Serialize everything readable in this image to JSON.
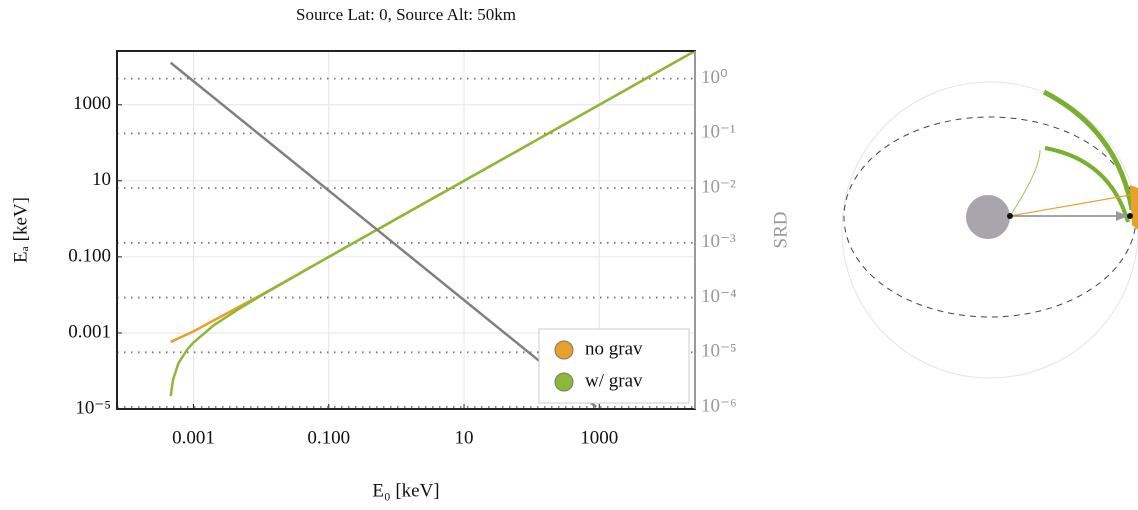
{
  "chart_data": {
    "type": "line",
    "title": "Source Lat: 0, Source Alt: 50km",
    "xlabel": "E₀ [keV]",
    "ylabel": "Eₐ [keV]",
    "y2label": "SRD",
    "xscale": "log",
    "yscale": "log",
    "y2scale": "log",
    "grid": true,
    "legend": "lower right",
    "xlim": [
      7.4e-05,
      26000
    ],
    "ylim": [
      1e-05,
      26000
    ],
    "y2lim": [
      9.2e-07,
      3.2
    ],
    "xticks": [
      0.001,
      {
        "value": 0.1,
        "label": "0.100"
      },
      10,
      1000
    ],
    "yticks": [
      {
        "value": 1e-05,
        "label": "10⁻⁵"
      },
      0.001,
      {
        "value": 0.1,
        "label": "0.100"
      },
      10,
      1000
    ],
    "y2ticks": [
      {
        "value": 1e-06,
        "label": "10⁻⁶"
      },
      {
        "value": 1e-05,
        "label": "10⁻⁵"
      },
      {
        "value": 0.0001,
        "label": "10⁻⁴"
      },
      {
        "value": 0.001,
        "label": "10⁻³"
      },
      {
        "value": 0.01,
        "label": "10⁻²"
      },
      {
        "value": 0.1,
        "label": "10⁻¹"
      },
      {
        "value": 1,
        "label": "10⁰"
      }
    ],
    "series": [
      {
        "name": "no grav",
        "color": "#e8a02a",
        "x": [
          0.00046,
          0.001,
          0.01,
          1,
          100,
          26000
        ],
        "values": [
          0.00058,
          0.0011,
          0.01,
          1,
          100,
          26000
        ]
      },
      {
        "name": "w/ grav",
        "color": "#8cb838",
        "x": [
          0.00046,
          0.0005,
          0.0006,
          0.0008,
          0.001,
          0.002,
          0.005,
          0.01,
          0.1,
          1,
          100,
          26000
        ],
        "values": [
          2.2e-05,
          6e-05,
          0.00016,
          0.00036,
          0.00056,
          0.0016,
          0.0046,
          0.0096,
          0.1,
          1,
          100,
          26000
        ]
      },
      {
        "color": "#808080",
        "axis": "y2",
        "x": [
          0.00046,
          0.01,
          1,
          100,
          900
        ],
        "values": [
          1.95,
          0.09,
          0.0009,
          9e-06,
          1e-06
        ]
      }
    ]
  }
}
